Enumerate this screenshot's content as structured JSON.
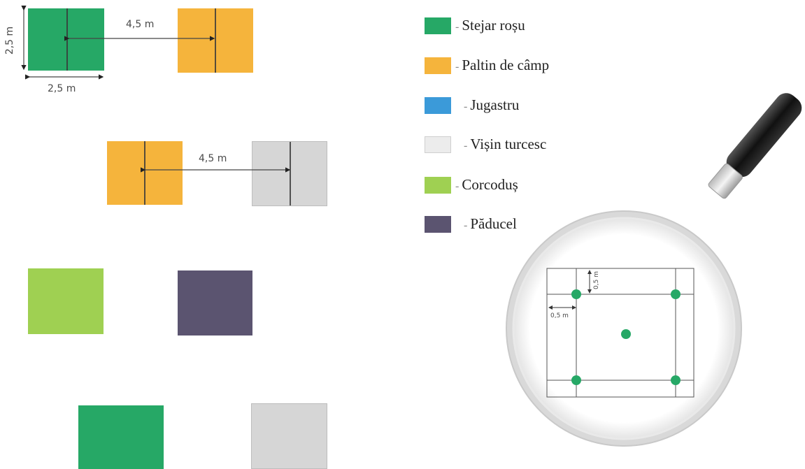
{
  "colors": {
    "stejar_rosu": "#26a866",
    "paltin_de_camp": "#f5b43c",
    "jugastru": "#3b9ad9",
    "visin_turcesc": "#d6d6d6",
    "corcodus": "#9fd052",
    "paducel": "#5b5470"
  },
  "legend": [
    {
      "label": "Stejar roșu",
      "color_key": "stejar_rosu"
    },
    {
      "label": "Paltin de câmp",
      "color_key": "paltin_de_camp"
    },
    {
      "label": "Jugastru",
      "color_key": "jugastru"
    },
    {
      "label": "Vișin turcesc",
      "color_key": "visin_turcesc"
    },
    {
      "label": "Corcoduș",
      "color_key": "corcodus"
    },
    {
      "label": "Păducel",
      "color_key": "paducel"
    }
  ],
  "measurements": {
    "spacing_row1": "4,5 m",
    "spacing_row2": "4,5 m",
    "square_height": "2,5 m",
    "square_width": "2,5 m"
  },
  "magnifier": {
    "offset_top": "0,5 m",
    "offset_left": "0,5 m"
  },
  "icons": [
    "magnifying-glass-icon"
  ]
}
